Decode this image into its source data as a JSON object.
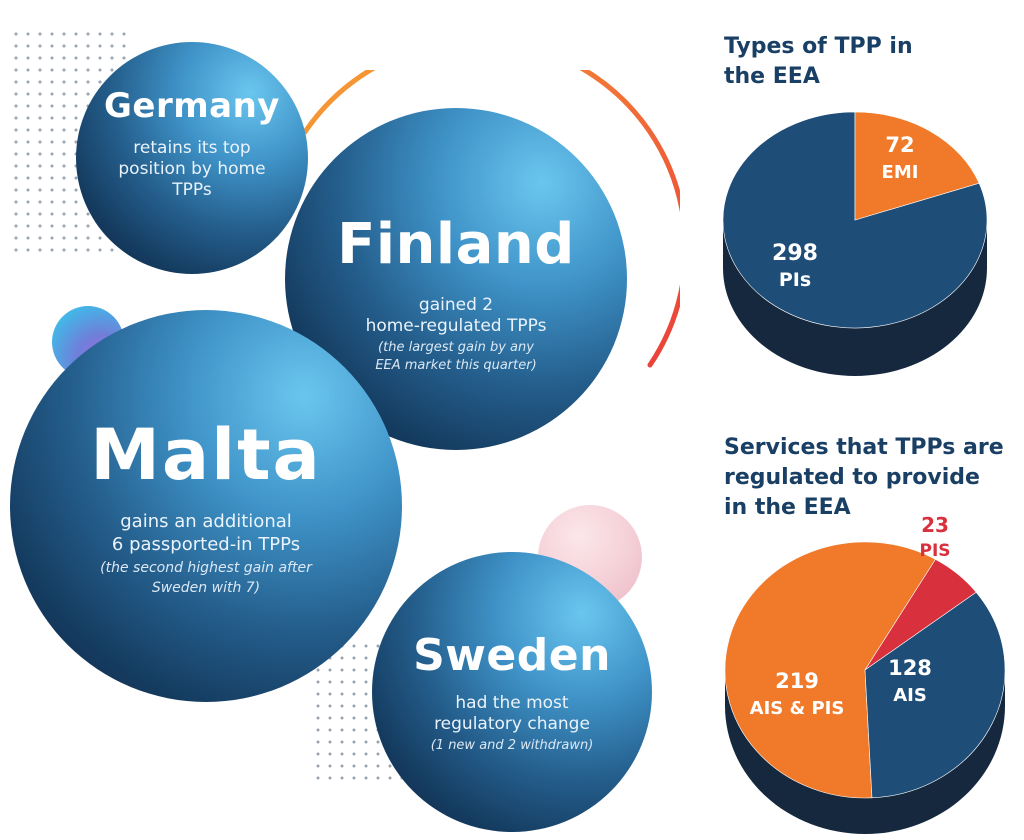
{
  "bubbles": {
    "germany": {
      "country": "Germany",
      "desc": "retains its top position by home TPPs",
      "note": ""
    },
    "finland": {
      "country": "Finland",
      "desc_line1": "gained 2",
      "desc_line2": "home-regulated TPPs",
      "note_line1": "(the largest gain by any",
      "note_line2": "EEA market this quarter)"
    },
    "malta": {
      "country": "Malta",
      "desc_line1": "gains an additional",
      "desc_line2": "6 passported-in TPPs",
      "note_line1": "(the second highest gain after",
      "note_line2": "Sweden with 7)"
    },
    "sweden": {
      "country": "Sweden",
      "desc_line1": "had the most",
      "desc_line2": "regulatory change",
      "note_line1": "(1 new and 2 withdrawn)"
    }
  },
  "colors": {
    "navy": "#1a3f64",
    "blue_dark": "#143a5e",
    "orange": "#f07a2a",
    "red": "#d9303d",
    "pie_side": "#16283e"
  },
  "chart_data": [
    {
      "type": "pie",
      "title": "Types of TPP in the EEA",
      "title_line1": "Types of TPP in",
      "title_line2": "the EEA",
      "slices": [
        {
          "label": "PIs",
          "value": 298,
          "color": "#1e4d78"
        },
        {
          "label": "EMI",
          "value": 72,
          "color": "#f07a2a"
        }
      ]
    },
    {
      "type": "pie",
      "title": "Services that TPPs are regulated to provide in the EEA",
      "title_line1": "Services that TPPs are",
      "title_line2": "regulated to provide",
      "title_line3": "in the EEA",
      "slices": [
        {
          "label": "AIS & PIS",
          "value": 219,
          "color": "#f07a2a"
        },
        {
          "label": "PIS",
          "value": 23,
          "color": "#d9303d"
        },
        {
          "label": "AIS",
          "value": 128,
          "color": "#1e4d78"
        }
      ]
    }
  ]
}
